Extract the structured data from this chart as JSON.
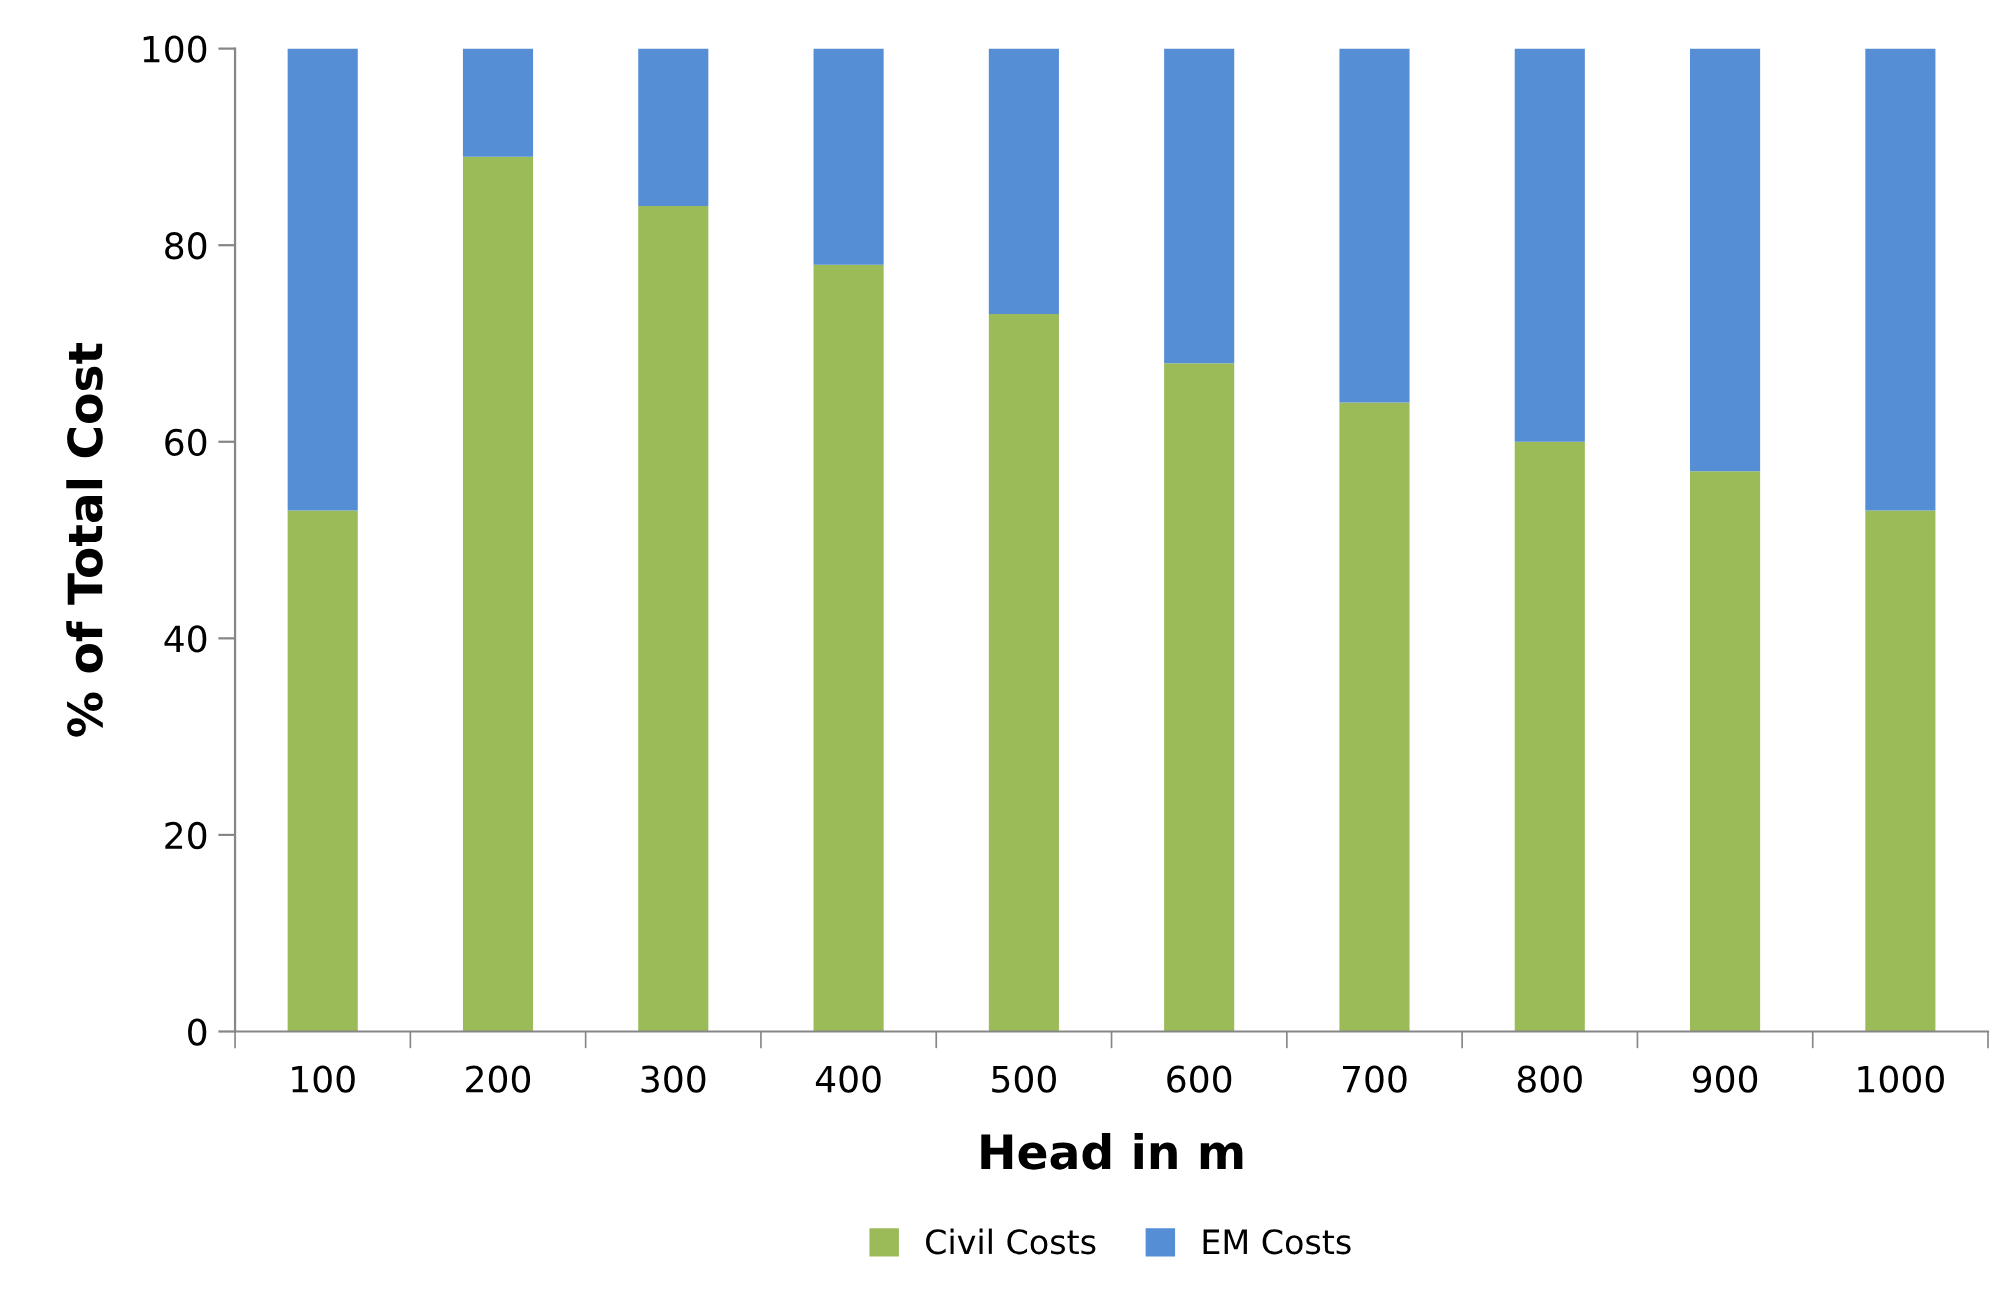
{
  "chart_data": {
    "type": "bar",
    "stacked": true,
    "xlabel": "Head in m",
    "ylabel": "% of Total Cost",
    "categories": [
      "100",
      "200",
      "300",
      "400",
      "500",
      "600",
      "700",
      "800",
      "900",
      "1000"
    ],
    "series": [
      {
        "name": "Civil Costs",
        "color": "#9bbb59",
        "values": [
          53,
          89,
          84,
          78,
          73,
          68,
          64,
          60,
          57,
          53
        ]
      },
      {
        "name": "EM Costs",
        "color": "#558ed5",
        "values": [
          47,
          11,
          16,
          22,
          27,
          32,
          36,
          40,
          43,
          47
        ]
      }
    ],
    "ylim": [
      0,
      100
    ],
    "yticks": [
      0,
      20,
      40,
      60,
      80,
      100
    ],
    "grid": false,
    "legend": "bottom"
  }
}
